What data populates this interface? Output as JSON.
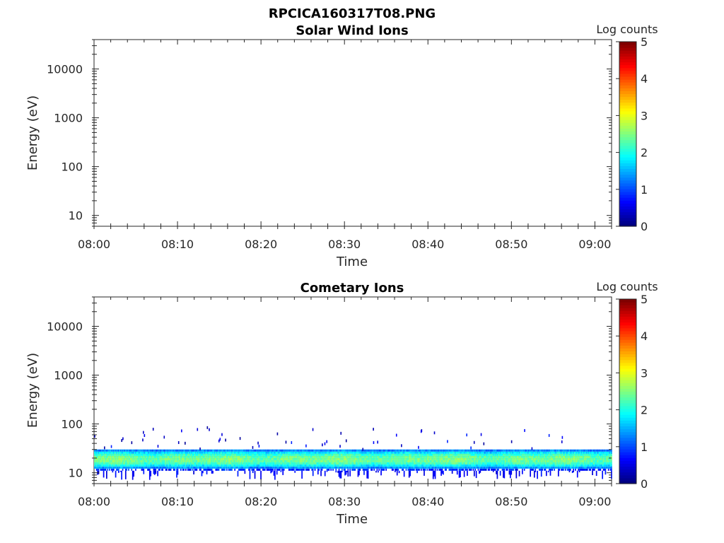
{
  "page_title": "RPCICA160317T08.PNG",
  "chart_data": [
    {
      "type": "heatmap",
      "title": "Solar Wind Ions",
      "xlabel": "Time",
      "ylabel": "Energy (eV)",
      "x_ticks": [
        "08:00",
        "08:10",
        "08:20",
        "08:30",
        "08:40",
        "08:50",
        "09:00"
      ],
      "x_range": [
        "08:00",
        "09:02"
      ],
      "y_scale": "log",
      "y_ticks": [
        "10",
        "100",
        "1000",
        "10000"
      ],
      "y_range": [
        6,
        40000
      ],
      "colorbar": {
        "label": "Log counts",
        "range": [
          0,
          5
        ],
        "ticks": [
          "0",
          "1",
          "2",
          "3",
          "4",
          "5"
        ],
        "colormap": "jet"
      },
      "band": null
    },
    {
      "type": "heatmap",
      "title": "Cometary Ions",
      "xlabel": "Time",
      "ylabel": "Energy (eV)",
      "x_ticks": [
        "08:00",
        "08:10",
        "08:20",
        "08:30",
        "08:40",
        "08:50",
        "09:00"
      ],
      "x_range": [
        "08:00",
        "09:02"
      ],
      "y_scale": "log",
      "y_ticks": [
        "10",
        "100",
        "1000",
        "10000"
      ],
      "y_range": [
        6,
        40000
      ],
      "colorbar": {
        "label": "Log counts",
        "range": [
          0,
          5
        ],
        "ticks": [
          "0",
          "1",
          "2",
          "3",
          "4",
          "5"
        ],
        "colormap": "jet"
      },
      "band": {
        "time_range": [
          "08:00",
          "09:02"
        ],
        "energy_range_eV": [
          11,
          30
        ],
        "peak_energy_eV": [
          17,
          21
        ],
        "peak_log_counts": 2.3,
        "edge_log_counts": 0.6,
        "sparse_points_max_energy_eV": 85
      }
    }
  ]
}
